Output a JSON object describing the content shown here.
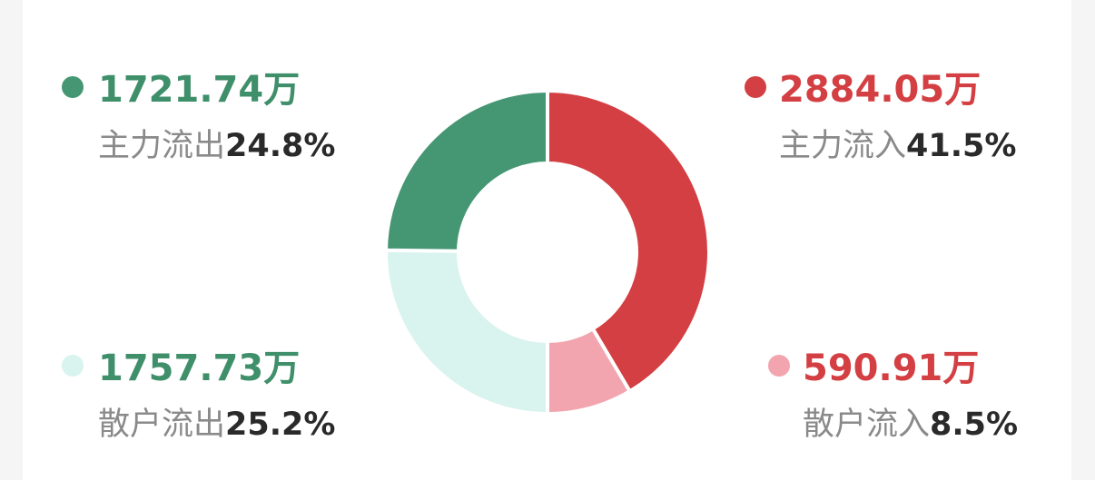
{
  "chart_data": {
    "type": "pie",
    "categories": [
      "主力流入",
      "散户流入",
      "散户流出",
      "主力流出"
    ],
    "values": [
      41.5,
      8.5,
      25.2,
      24.8
    ],
    "value_labels": [
      "41.5%",
      "8.5%",
      "25.2%",
      "24.8%"
    ],
    "amount_labels": [
      "2884.05万",
      "590.91万",
      "1757.73万",
      "1721.74万"
    ],
    "colors": [
      "#d33f42",
      "#f2a5ae",
      "#d9f3ee",
      "#459673"
    ],
    "text_colors": [
      "#d33f42",
      "#d33f42",
      "#3f8f6b",
      "#3f8f6b"
    ]
  }
}
